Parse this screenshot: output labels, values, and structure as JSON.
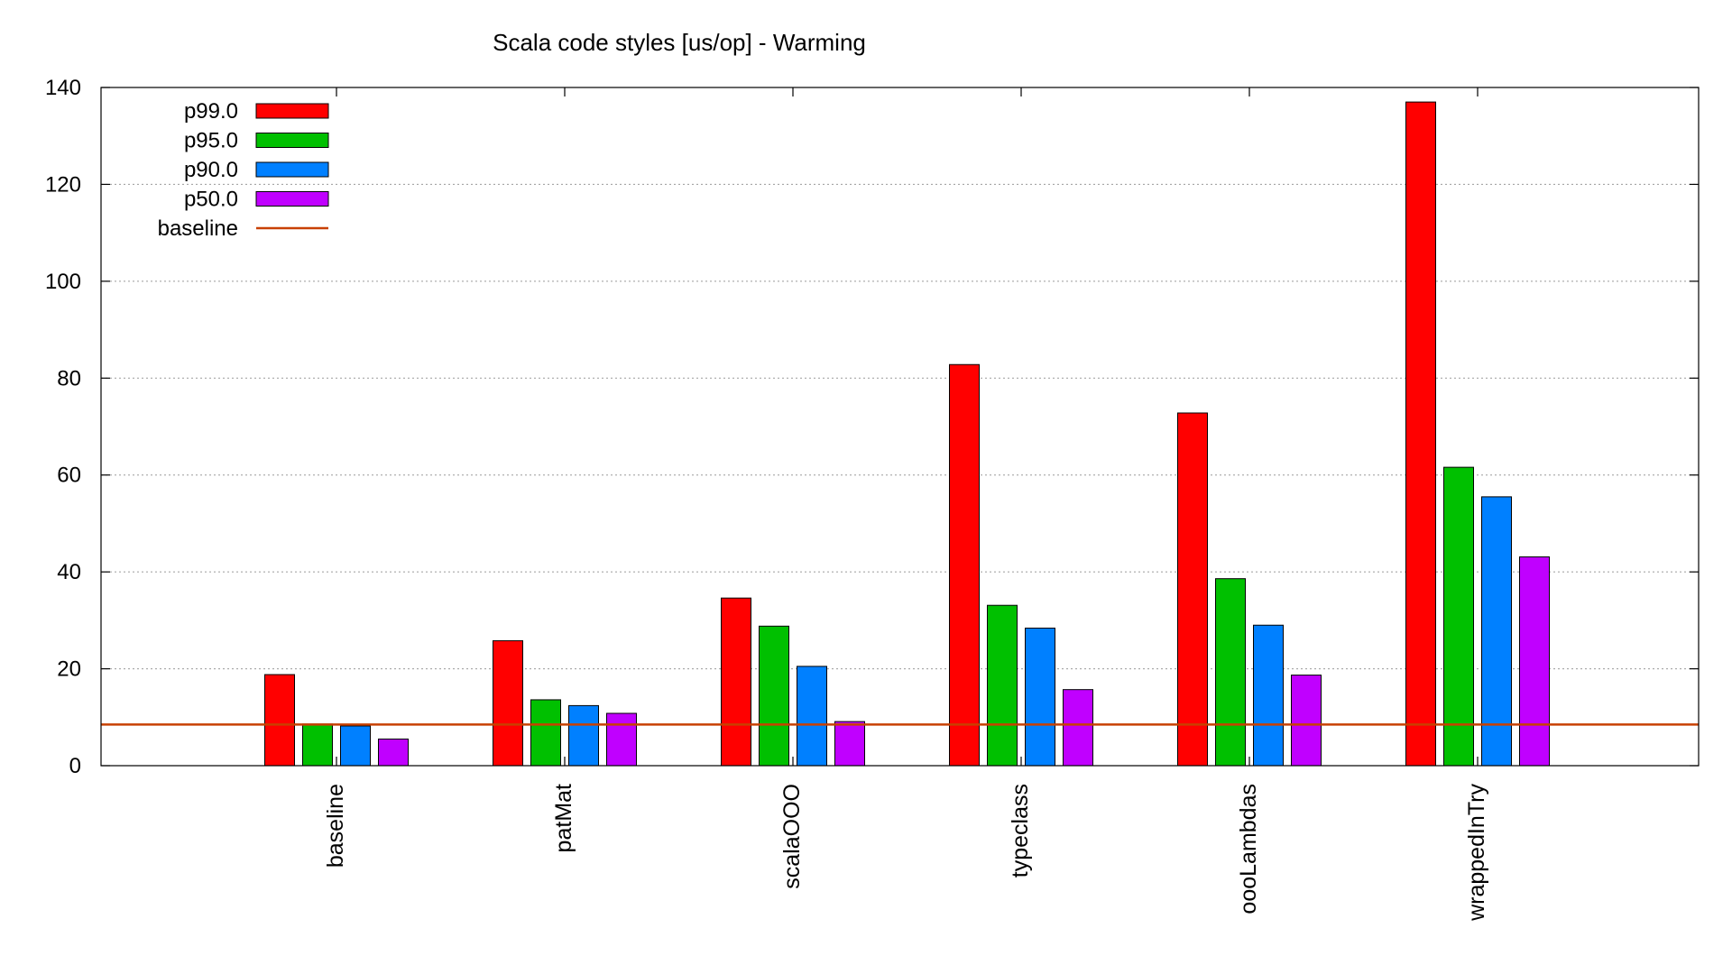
{
  "chart_data": {
    "type": "bar",
    "title": "Scala code styles [us/op] - Warming",
    "xlabel": "",
    "ylabel": "",
    "ylim": [
      0,
      140
    ],
    "yticks": [
      0,
      20,
      40,
      60,
      80,
      100,
      120,
      140
    ],
    "grid": true,
    "legend_position": "top-left",
    "categories": [
      "baseline",
      "patMat",
      "scalaOOO",
      "typeclass",
      "oooLambdas",
      "wrappedInTry"
    ],
    "series": [
      {
        "name": "p99.0",
        "color": "#ff0000",
        "values": [
          18.8,
          25.8,
          34.6,
          82.8,
          72.8,
          137.0
        ]
      },
      {
        "name": "p95.0",
        "color": "#00c000",
        "values": [
          8.6,
          13.6,
          28.8,
          33.1,
          38.6,
          61.6
        ]
      },
      {
        "name": "p90.0",
        "color": "#0080ff",
        "values": [
          8.2,
          12.4,
          20.5,
          28.4,
          29.0,
          55.5
        ]
      },
      {
        "name": "p50.0",
        "color": "#c000ff",
        "values": [
          5.5,
          10.8,
          9.1,
          15.7,
          18.7,
          43.1
        ]
      }
    ],
    "baseline": {
      "name": "baseline",
      "color": "#c84000",
      "value": 8.5
    }
  }
}
